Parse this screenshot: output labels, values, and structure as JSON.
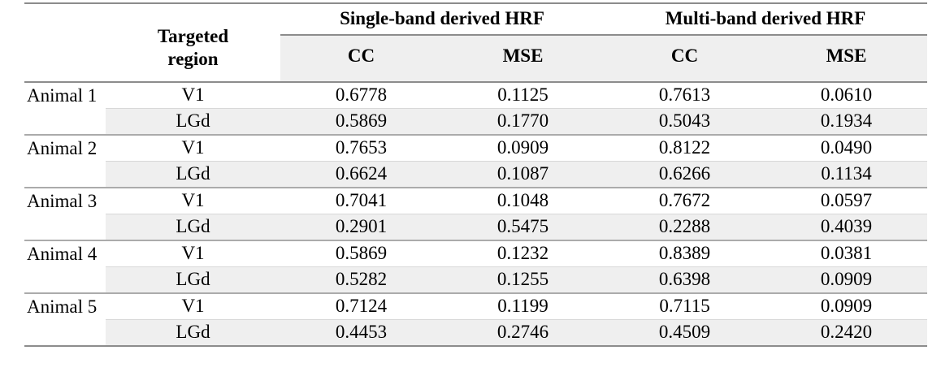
{
  "table": {
    "corner_label": "",
    "targeted_region_header": "Targeted region",
    "group_headers": [
      "Single-band derived HRF",
      "Multi-band derived HRF"
    ],
    "sub_headers": [
      "CC",
      "MSE",
      "CC",
      "MSE"
    ],
    "rows": [
      {
        "animal": "Animal 1",
        "region": "V1",
        "values": [
          "0.6778",
          "0.1125",
          "0.7613",
          "0.0610"
        ]
      },
      {
        "animal": "",
        "region": "LGd",
        "values": [
          "0.5869",
          "0.1770",
          "0.5043",
          "0.1934"
        ]
      },
      {
        "animal": "Animal 2",
        "region": "V1",
        "values": [
          "0.7653",
          "0.0909",
          "0.8122",
          "0.0490"
        ]
      },
      {
        "animal": "",
        "region": "LGd",
        "values": [
          "0.6624",
          "0.1087",
          "0.6266",
          "0.1134"
        ]
      },
      {
        "animal": "Animal 3",
        "region": "V1",
        "values": [
          "0.7041",
          "0.1048",
          "0.7672",
          "0.0597"
        ]
      },
      {
        "animal": "",
        "region": "LGd",
        "values": [
          "0.2901",
          "0.5475",
          "0.2288",
          "0.4039"
        ]
      },
      {
        "animal": "Animal 4",
        "region": "V1",
        "values": [
          "0.5869",
          "0.1232",
          "0.8389",
          "0.0381"
        ]
      },
      {
        "animal": "",
        "region": "LGd",
        "values": [
          "0.5282",
          "0.1255",
          "0.6398",
          "0.0909"
        ]
      },
      {
        "animal": "Animal 5",
        "region": "V1",
        "values": [
          "0.7124",
          "0.1199",
          "0.7115",
          "0.0909"
        ]
      },
      {
        "animal": "",
        "region": "LGd",
        "values": [
          "0.4453",
          "0.2746",
          "0.4509",
          "0.2420"
        ]
      }
    ],
    "colors": {
      "row_shading": "#efefef",
      "strong_rule": "#8c8c8c",
      "group_rule": "#ababab",
      "faint_rule": "#d8d8d8",
      "text": "#000000",
      "background": "#ffffff"
    }
  }
}
